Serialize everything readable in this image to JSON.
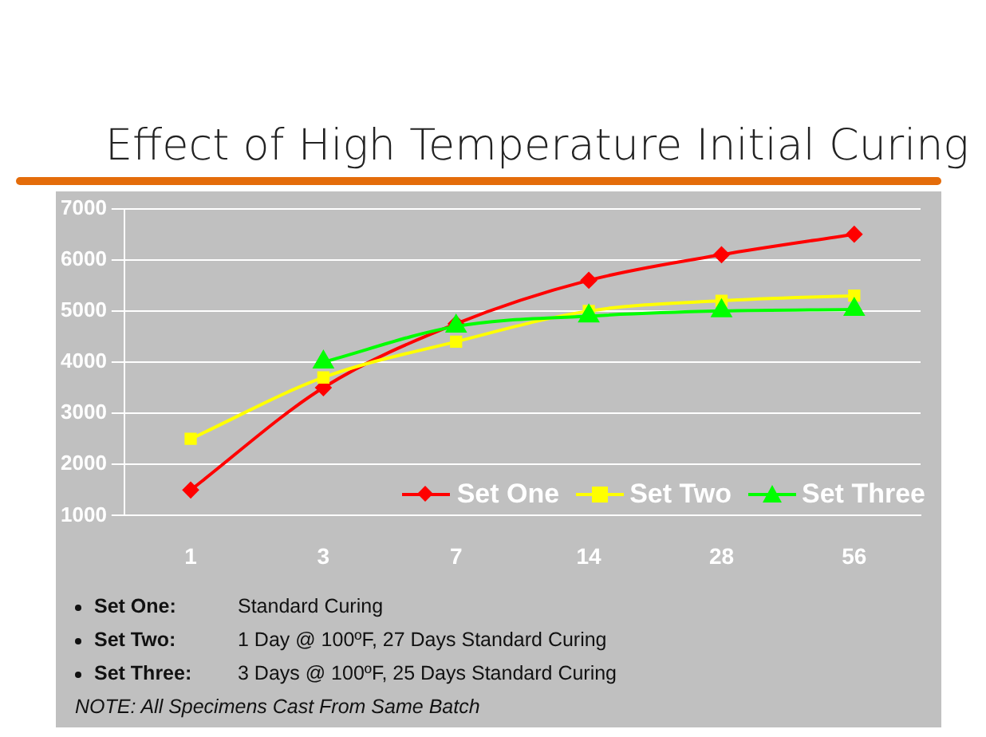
{
  "chart_data": {
    "type": "line",
    "title": "Effect of High Temperature Initial Curing",
    "categories": [
      "1",
      "3",
      "7",
      "14",
      "28",
      "56"
    ],
    "series": [
      {
        "name": "Set One",
        "color": "#ff0000",
        "marker": "diamond",
        "values": [
          1500,
          3500,
          4750,
          5600,
          6100,
          6500
        ]
      },
      {
        "name": "Set Two",
        "color": "#ffff00",
        "marker": "square",
        "values": [
          2500,
          3700,
          4400,
          5000,
          5200,
          5300
        ]
      },
      {
        "name": "Set Three",
        "color": "#00ff00",
        "marker": "triangle",
        "values": [
          null,
          4000,
          4700,
          4900,
          5000,
          5030
        ]
      }
    ],
    "ylim": [
      1000,
      7000
    ],
    "yticks": [
      1000,
      2000,
      3000,
      4000,
      5000,
      6000,
      7000
    ],
    "grid": "y",
    "legend": "bottom right",
    "annotations": [
      "Set One: Standard Curing",
      "Set Two: 1 Day @ 100ºF, 27 Days Standard Curing",
      "Set Three: 3 Days @ 100ºF, 25 Days Standard Curing",
      "NOTE: All Specimens Cast From Same Batch"
    ]
  }
}
